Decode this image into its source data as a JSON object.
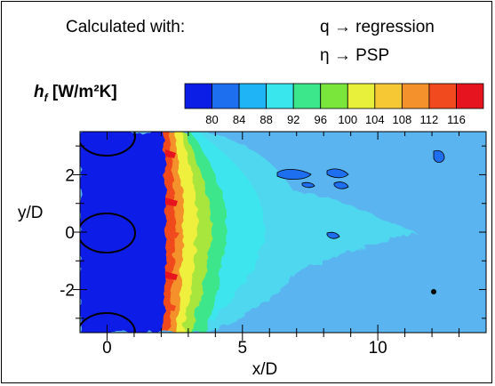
{
  "header": {
    "calc_label": "Calculated with:",
    "q_line": "q → regression",
    "eta_line": "η → PSP"
  },
  "colorbar": {
    "title_symbol": "h",
    "title_subscript": "f",
    "title_units": "[W/m²K]",
    "ticks": [
      "80",
      "84",
      "88",
      "92",
      "96",
      "100",
      "104",
      "108",
      "112",
      "116"
    ],
    "colors": [
      "#0a1ee6",
      "#1e6ef0",
      "#1fb4f5",
      "#3ae6ee",
      "#3ce68a",
      "#7ae63c",
      "#e8f03c",
      "#f5c834",
      "#f5912c",
      "#f04a1e",
      "#e6141e"
    ]
  },
  "chart_data": {
    "type": "heatmap",
    "title": "h_f [W/m²K]",
    "xlabel": "x/D",
    "ylabel": "y/D",
    "xlim": [
      -1,
      14
    ],
    "ylim": [
      -3.5,
      3.5
    ],
    "x_ticks": [
      "0",
      "5",
      "10"
    ],
    "y_ticks": [
      "2",
      "0",
      "-2"
    ],
    "colorbar_range": [
      78,
      118
    ],
    "colorbar_ticks": [
      80,
      84,
      88,
      92,
      96,
      100,
      104,
      108,
      112,
      116
    ],
    "colormap": "jet",
    "annotations": [
      "Calculated with:",
      "q → regression",
      "η → PSP"
    ]
  }
}
